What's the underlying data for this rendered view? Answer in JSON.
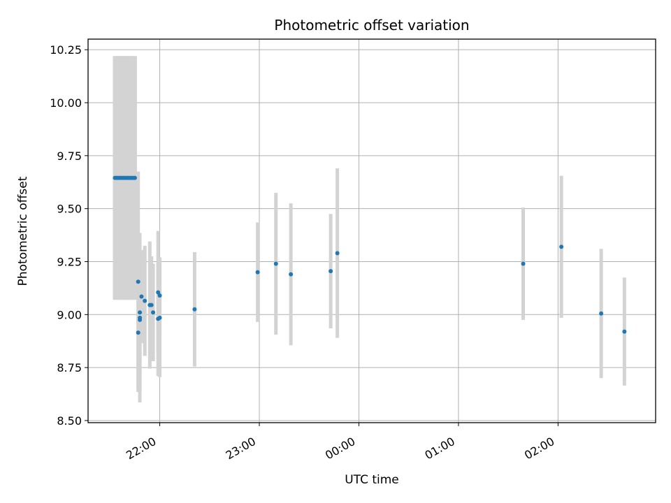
{
  "chart_data": {
    "type": "scatter",
    "title": "Photometric offset variation",
    "xlabel": "UTC time",
    "ylabel": "Photometric offset",
    "x_ticks": [
      "22:00",
      "23:00",
      "00:00",
      "01:00",
      "02:00"
    ],
    "x_tick_hours": [
      22,
      23,
      24,
      25,
      26
    ],
    "y_ticks": [
      "8.50",
      "8.75",
      "9.00",
      "9.25",
      "9.50",
      "9.75",
      "10.00",
      "10.25"
    ],
    "xlim_hours": [
      21.28,
      26.98
    ],
    "ylim": [
      8.49,
      10.3
    ],
    "grid": true,
    "legend": "none",
    "colors": {
      "point": "#1f77b4",
      "errorbar": "#d3d3d3",
      "grid": "#b0b0b0"
    },
    "points": [
      {
        "x": "21:33",
        "y": 9.645,
        "err": 0.575
      },
      {
        "x": "21:34",
        "y": 9.645,
        "err": 0.575
      },
      {
        "x": "21:35",
        "y": 9.645,
        "err": 0.575
      },
      {
        "x": "21:36",
        "y": 9.645,
        "err": 0.575
      },
      {
        "x": "21:37",
        "y": 9.645,
        "err": 0.575
      },
      {
        "x": "21:38",
        "y": 9.645,
        "err": 0.575
      },
      {
        "x": "21:39",
        "y": 9.645,
        "err": 0.575
      },
      {
        "x": "21:40",
        "y": 9.645,
        "err": 0.575
      },
      {
        "x": "21:41",
        "y": 9.645,
        "err": 0.575
      },
      {
        "x": "21:42",
        "y": 9.645,
        "err": 0.575
      },
      {
        "x": "21:43",
        "y": 9.645,
        "err": 0.575
      },
      {
        "x": "21:44",
        "y": 9.645,
        "err": 0.575
      },
      {
        "x": "21:45",
        "y": 9.645,
        "err": 0.575
      },
      {
        "x": "21:47",
        "y": 9.155,
        "err": 0.52
      },
      {
        "x": "21:47",
        "y": 8.915,
        "err": 0.27
      },
      {
        "x": "21:48",
        "y": 8.975,
        "err": 0.33
      },
      {
        "x": "21:48",
        "y": 8.985,
        "err": 0.4
      },
      {
        "x": "21:48",
        "y": 9.01,
        "err": 0.29
      },
      {
        "x": "21:49",
        "y": 9.085,
        "err": 0.22
      },
      {
        "x": "21:51",
        "y": 9.065,
        "err": 0.26
      },
      {
        "x": "21:54",
        "y": 9.045,
        "err": 0.3
      },
      {
        "x": "21:55",
        "y": 9.045,
        "err": 0.23
      },
      {
        "x": "21:56",
        "y": 9.01,
        "err": 0.23
      },
      {
        "x": "21:59",
        "y": 9.105,
        "err": 0.29
      },
      {
        "x": "21:59",
        "y": 8.98,
        "err": 0.27
      },
      {
        "x": "22:00",
        "y": 8.985,
        "err": 0.28
      },
      {
        "x": "22:00",
        "y": 9.09,
        "err": 0.18
      },
      {
        "x": "22:21",
        "y": 9.025,
        "err": 0.27
      },
      {
        "x": "22:59",
        "y": 9.2,
        "err": 0.235
      },
      {
        "x": "23:10",
        "y": 9.24,
        "err": 0.335
      },
      {
        "x": "23:19",
        "y": 9.19,
        "err": 0.335
      },
      {
        "x": "23:43",
        "y": 9.205,
        "err": 0.27
      },
      {
        "x": "23:47",
        "y": 9.29,
        "err": 0.4
      },
      {
        "x": "01:39",
        "y": 9.24,
        "err": 0.265
      },
      {
        "x": "02:02",
        "y": 9.32,
        "err": 0.335
      },
      {
        "x": "02:26",
        "y": 9.005,
        "err": 0.305
      },
      {
        "x": "02:40",
        "y": 8.92,
        "err": 0.255
      }
    ]
  }
}
